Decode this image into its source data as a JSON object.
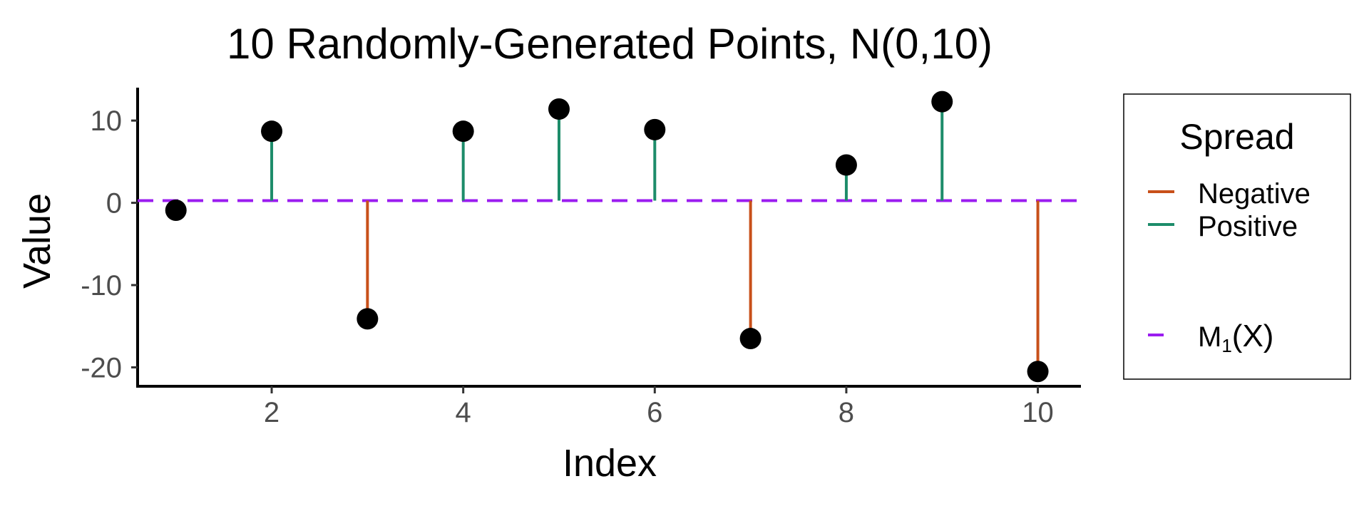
{
  "chart_data": {
    "type": "scatter",
    "title": "10 Randomly-Generated Points, N(0,10)",
    "xlabel": "Index",
    "ylabel": "Value",
    "xlim": [
      0.6,
      10.45
    ],
    "ylim": [
      -22.3,
      14.0
    ],
    "xticks": [
      2,
      4,
      6,
      8,
      10
    ],
    "yticks": [
      10,
      0,
      -10,
      -20
    ],
    "grid": false,
    "x": [
      1,
      2,
      3,
      4,
      5,
      6,
      7,
      8,
      9,
      10
    ],
    "y": [
      -0.9,
      8.7,
      -14.1,
      8.7,
      11.4,
      8.9,
      -16.5,
      4.6,
      12.3,
      -20.5
    ],
    "mean_line": {
      "value": 0.27,
      "label_main": "M",
      "label_sub": "1",
      "label_rest": "(X)",
      "color": "#9B1CF0",
      "style": "dashed"
    },
    "segments": {
      "Negative": {
        "color": "#C8501A"
      },
      "Positive": {
        "color": "#1D8C6A"
      }
    },
    "point_color": "#000000",
    "legend": {
      "title": "Spread",
      "items": [
        "Negative",
        "Positive"
      ],
      "placement": "right"
    }
  }
}
